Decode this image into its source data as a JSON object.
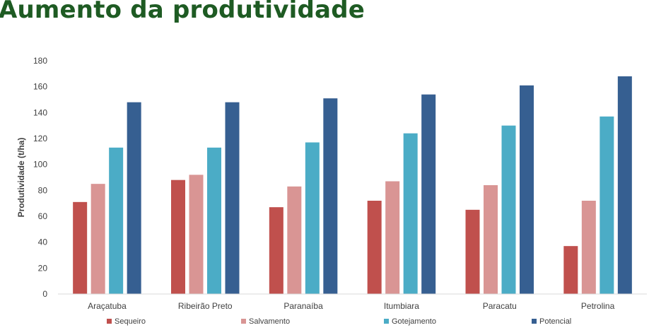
{
  "slide": {
    "title": "Aumento da produtividade"
  },
  "chart_data": {
    "type": "bar",
    "title": "",
    "xlabel": "",
    "ylabel": "Produtividade (t/ha)",
    "ylim": [
      0,
      180
    ],
    "yticks": [
      0,
      20,
      40,
      60,
      80,
      100,
      120,
      140,
      160,
      180
    ],
    "grid": false,
    "legend_position": "bottom",
    "categories": [
      "Araçatuba",
      "Ribeirão Preto",
      "Paranaíba",
      "Itumbiara",
      "Paracatu",
      "Petrolina"
    ],
    "series": [
      {
        "name": "Sequeiro",
        "color": "#c0504d",
        "values": [
          71,
          88,
          67,
          72,
          65,
          37
        ]
      },
      {
        "name": "Salvamento",
        "color": "#d99594",
        "values": [
          85,
          92,
          83,
          87,
          84,
          72
        ]
      },
      {
        "name": "Gotejamento",
        "color": "#4bacc6",
        "values": [
          113,
          113,
          117,
          124,
          130,
          137
        ]
      },
      {
        "name": "Potencial",
        "color": "#365f91",
        "values": [
          148,
          148,
          151,
          154,
          161,
          168
        ]
      }
    ]
  }
}
